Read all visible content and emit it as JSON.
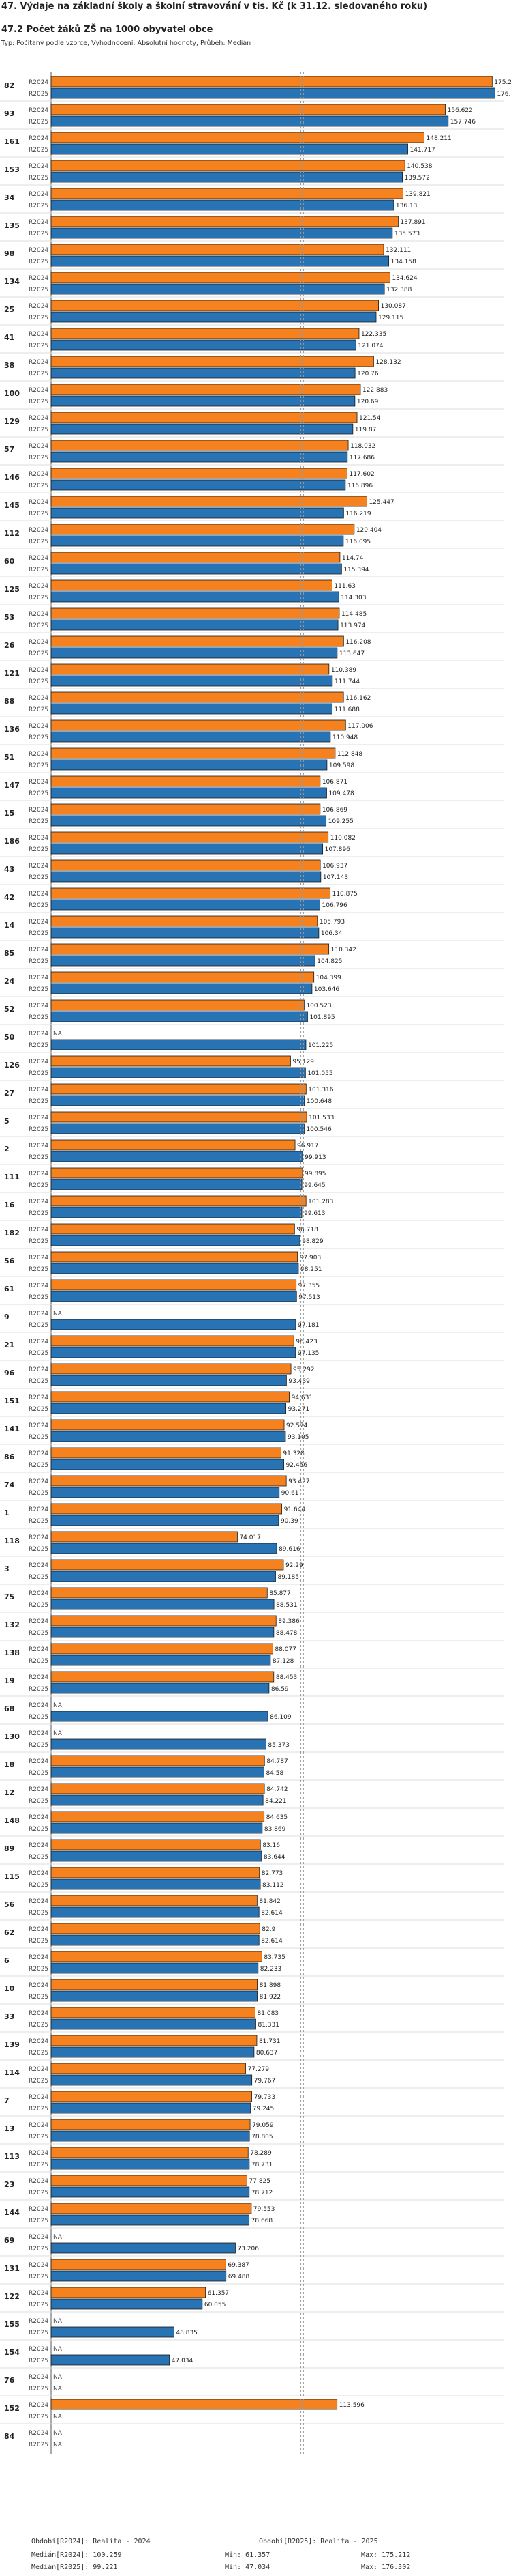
{
  "header": {
    "title_line1": "47. Výdaje na základní školy a školní stravování v tis. Kč (k 31.12. sledovaného roku)",
    "title_line2": "47.2 Počet žáků ZŠ na 1000 obyvatel obce",
    "subtitle": "Typ: Počítaný podle vzorce, Vyhodnocení: Absolutní hodnoty, Průběh: Medián"
  },
  "colors": {
    "r2024": "#f5821f",
    "r2025": "#2873b4",
    "outline": "#1a1a1a",
    "median": "#999999"
  },
  "chart_data": {
    "type": "bar",
    "orientation": "horizontal",
    "title": "47.2 Počet žáků ZŠ na 1000 obyvatel obce",
    "series_names": [
      "R2024",
      "R2025"
    ],
    "na_label": "NA",
    "xlim": [
      0,
      180
    ],
    "median": {
      "R2024": 100.259,
      "R2025": 99.221
    },
    "groups": [
      {
        "id": "82",
        "R2024": 175.212,
        "R2025": 176.302
      },
      {
        "id": "93",
        "R2024": 156.622,
        "R2025": 157.746
      },
      {
        "id": "161",
        "R2024": 148.211,
        "R2025": 141.717
      },
      {
        "id": "153",
        "R2024": 140.538,
        "R2025": 139.572
      },
      {
        "id": "34",
        "R2024": 139.821,
        "R2025": 136.13
      },
      {
        "id": "135",
        "R2024": 137.891,
        "R2025": 135.573
      },
      {
        "id": "98",
        "R2024": 132.111,
        "R2025": 134.158
      },
      {
        "id": "134",
        "R2024": 134.624,
        "R2025": 132.388
      },
      {
        "id": "25",
        "R2024": 130.087,
        "R2025": 129.115
      },
      {
        "id": "41",
        "R2024": 122.335,
        "R2025": 121.074
      },
      {
        "id": "38",
        "R2024": 128.132,
        "R2025": 120.76
      },
      {
        "id": "100",
        "R2024": 122.883,
        "R2025": 120.69
      },
      {
        "id": "129",
        "R2024": 121.54,
        "R2025": 119.87
      },
      {
        "id": "57",
        "R2024": 118.032,
        "R2025": 117.686
      },
      {
        "id": "146",
        "R2024": 117.602,
        "R2025": 116.896
      },
      {
        "id": "145",
        "R2024": 125.447,
        "R2025": 116.219
      },
      {
        "id": "112",
        "R2024": 120.404,
        "R2025": 116.095
      },
      {
        "id": "60",
        "R2024": 114.74,
        "R2025": 115.394
      },
      {
        "id": "125",
        "R2024": 111.63,
        "R2025": 114.303
      },
      {
        "id": "53",
        "R2024": 114.485,
        "R2025": 113.974
      },
      {
        "id": "26",
        "R2024": 116.208,
        "R2025": 113.647
      },
      {
        "id": "121",
        "R2024": 110.389,
        "R2025": 111.744
      },
      {
        "id": "88",
        "R2024": 116.162,
        "R2025": 111.688
      },
      {
        "id": "136",
        "R2024": 117.006,
        "R2025": 110.948
      },
      {
        "id": "51",
        "R2024": 112.848,
        "R2025": 109.598
      },
      {
        "id": "147",
        "R2024": 106.871,
        "R2025": 109.478
      },
      {
        "id": "15",
        "R2024": 106.869,
        "R2025": 109.255
      },
      {
        "id": "186",
        "R2024": 110.082,
        "R2025": 107.896
      },
      {
        "id": "43",
        "R2024": 106.937,
        "R2025": 107.143
      },
      {
        "id": "42",
        "R2024": 110.875,
        "R2025": 106.796
      },
      {
        "id": "14",
        "R2024": 105.793,
        "R2025": 106.34
      },
      {
        "id": "85",
        "R2024": 110.342,
        "R2025": 104.825
      },
      {
        "id": "24",
        "R2024": 104.399,
        "R2025": 103.646
      },
      {
        "id": "52",
        "R2024": 100.523,
        "R2025": 101.895
      },
      {
        "id": "50",
        "R2024": null,
        "R2025": 101.225
      },
      {
        "id": "126",
        "R2024": 95.129,
        "R2025": 101.055
      },
      {
        "id": "27",
        "R2024": 101.316,
        "R2025": 100.648
      },
      {
        "id": "5",
        "R2024": 101.533,
        "R2025": 100.546
      },
      {
        "id": "2",
        "R2024": 96.917,
        "R2025": 99.913
      },
      {
        "id": "111",
        "R2024": 99.895,
        "R2025": 99.645
      },
      {
        "id": "16",
        "R2024": 101.283,
        "R2025": 99.613
      },
      {
        "id": "182",
        "R2024": 96.718,
        "R2025": 98.829
      },
      {
        "id": "56",
        "R2024": 97.903,
        "R2025": 98.251
      },
      {
        "id": "61",
        "R2024": 97.355,
        "R2025": 97.513
      },
      {
        "id": "9",
        "R2024": null,
        "R2025": 97.181
      },
      {
        "id": "21",
        "R2024": 96.423,
        "R2025": 97.135
      },
      {
        "id": "96",
        "R2024": 95.292,
        "R2025": 93.489
      },
      {
        "id": "151",
        "R2024": 94.631,
        "R2025": 93.271
      },
      {
        "id": "141",
        "R2024": 92.574,
        "R2025": 93.105
      },
      {
        "id": "86",
        "R2024": 91.328,
        "R2025": 92.456
      },
      {
        "id": "74",
        "R2024": 93.427,
        "R2025": 90.61
      },
      {
        "id": "1",
        "R2024": 91.644,
        "R2025": 90.39
      },
      {
        "id": "118",
        "R2024": 74.017,
        "R2025": 89.616
      },
      {
        "id": "3",
        "R2024": 92.29,
        "R2025": 89.185
      },
      {
        "id": "75",
        "R2024": 85.877,
        "R2025": 88.531
      },
      {
        "id": "132",
        "R2024": 89.386,
        "R2025": 88.478
      },
      {
        "id": "138",
        "R2024": 88.077,
        "R2025": 87.128
      },
      {
        "id": "19",
        "R2024": 88.453,
        "R2025": 86.59
      },
      {
        "id": "68",
        "R2024": null,
        "R2025": 86.109
      },
      {
        "id": "130",
        "R2024": null,
        "R2025": 85.373
      },
      {
        "id": "18",
        "R2024": 84.787,
        "R2025": 84.58
      },
      {
        "id": "12",
        "R2024": 84.742,
        "R2025": 84.221
      },
      {
        "id": "148",
        "R2024": 84.635,
        "R2025": 83.869
      },
      {
        "id": "89",
        "R2024": 83.16,
        "R2025": 83.644
      },
      {
        "id": "115",
        "R2024": 82.773,
        "R2025": 83.112
      },
      {
        "id": "56",
        "R2024": 81.842,
        "R2025": 82.614
      },
      {
        "id": "62",
        "R2024": 82.9,
        "R2025": 82.614
      },
      {
        "id": "6",
        "R2024": 83.735,
        "R2025": 82.233
      },
      {
        "id": "10",
        "R2024": 81.898,
        "R2025": 81.922
      },
      {
        "id": "33",
        "R2024": 81.083,
        "R2025": 81.331
      },
      {
        "id": "139",
        "R2024": 81.731,
        "R2025": 80.637
      },
      {
        "id": "114",
        "R2024": 77.279,
        "R2025": 79.767
      },
      {
        "id": "7",
        "R2024": 79.733,
        "R2025": 79.245
      },
      {
        "id": "13",
        "R2024": 79.059,
        "R2025": 78.805
      },
      {
        "id": "113",
        "R2024": 78.289,
        "R2025": 78.731
      },
      {
        "id": "23",
        "R2024": 77.825,
        "R2025": 78.712
      },
      {
        "id": "144",
        "R2024": 79.553,
        "R2025": 78.668
      },
      {
        "id": "69",
        "R2024": null,
        "R2025": 73.206
      },
      {
        "id": "131",
        "R2024": 69.387,
        "R2025": 69.488
      },
      {
        "id": "122",
        "R2024": 61.357,
        "R2025": 60.055
      },
      {
        "id": "155",
        "R2024": null,
        "R2025": 48.835
      },
      {
        "id": "154",
        "R2024": null,
        "R2025": 47.034
      },
      {
        "id": "76",
        "R2024": null,
        "R2025": null
      },
      {
        "id": "152",
        "R2024": 113.596,
        "R2025": null
      },
      {
        "id": "84",
        "R2024": null,
        "R2025": null
      }
    ]
  },
  "footer": {
    "legend_2024": "Období[R2024]: Realita - 2024",
    "legend_2025": "Období[R2025]: Realita - 2025",
    "median_2024": "Medián[R2024]: 100.259",
    "min_2024": "Min: 61.357",
    "max_2024": "Max: 175.212",
    "median_2025": "Medián[R2025]: 99.221",
    "min_2025": "Min: 47.034",
    "max_2025": "Max: 176.302"
  }
}
